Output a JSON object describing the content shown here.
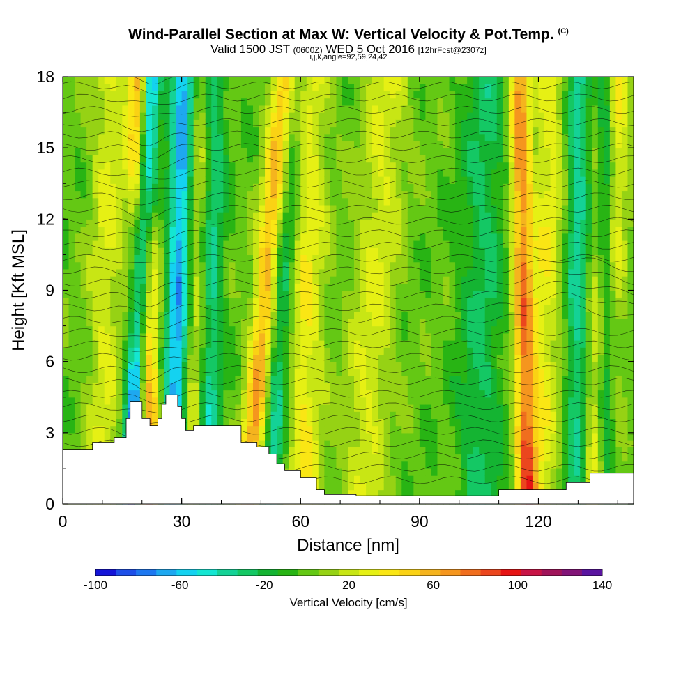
{
  "title": {
    "main": "Wind-Parallel Section at Max W: Vertical Velocity & Pot.Temp.",
    "copyright": "(C)",
    "valid": "Valid 1500 JST",
    "valid_utc": "(0600Z)",
    "date": "WED 5 Oct 2016",
    "forecast": "[12hrFcst@2307z]",
    "params": "i,j,k,angle=92,59,24,42"
  },
  "chart_data": {
    "type": "heatmap",
    "xlabel": "Distance [nm]",
    "ylabel": "Height [Kft MSL]",
    "xlim": [
      0,
      144
    ],
    "ylim": [
      0,
      18
    ],
    "x_ticks": [
      "0",
      "30",
      "60",
      "90",
      "120"
    ],
    "y_ticks": [
      "0",
      "3",
      "6",
      "9",
      "12",
      "15",
      "18"
    ],
    "x_tick_values": [
      0,
      30,
      60,
      90,
      120
    ],
    "y_tick_values": [
      0,
      3,
      6,
      9,
      12,
      15,
      18
    ],
    "colorbar": {
      "label": "Vertical Velocity [cm/s]",
      "tick_labels": [
        "-100",
        "-60",
        "-20",
        "20",
        "60",
        "100",
        "140"
      ],
      "tick_values": [
        -100,
        -60,
        -20,
        20,
        60,
        100,
        140
      ],
      "range": [
        -100,
        140
      ],
      "colors": [
        "#1414d8",
        "#1e4fe8",
        "#1e78f0",
        "#1ea8f0",
        "#14d2f0",
        "#14e6d2",
        "#14d296",
        "#14c864",
        "#14b432",
        "#28b414",
        "#64c814",
        "#96d214",
        "#c8e614",
        "#e6f014",
        "#fae614",
        "#fad214",
        "#f5b41e",
        "#f5961e",
        "#f06e1e",
        "#eb461e",
        "#e61414",
        "#c81446",
        "#a0145a",
        "#821478",
        "#5a14a0"
      ]
    },
    "terrain_kft": [
      [
        0,
        2.3
      ],
      [
        7.5,
        2.3
      ],
      [
        7.5,
        2.6
      ],
      [
        13,
        2.6
      ],
      [
        13,
        2.8
      ],
      [
        16,
        2.8
      ],
      [
        16,
        3.6
      ],
      [
        17,
        3.6
      ],
      [
        17,
        4.3
      ],
      [
        20,
        4.3
      ],
      [
        20,
        3.6
      ],
      [
        22,
        3.6
      ],
      [
        22,
        3.3
      ],
      [
        24,
        3.3
      ],
      [
        24,
        3.6
      ],
      [
        25,
        3.6
      ],
      [
        25,
        4.2
      ],
      [
        26,
        4.2
      ],
      [
        26,
        4.6
      ],
      [
        29,
        4.6
      ],
      [
        29,
        4.1
      ],
      [
        30,
        4.1
      ],
      [
        30,
        3.6
      ],
      [
        31,
        3.6
      ],
      [
        31,
        3.1
      ],
      [
        33,
        3.1
      ],
      [
        33,
        3.3
      ],
      [
        40,
        3.3
      ],
      [
        40,
        3.3
      ],
      [
        45,
        3.3
      ],
      [
        45,
        2.6
      ],
      [
        49,
        2.6
      ],
      [
        49,
        2.4
      ],
      [
        52,
        2.4
      ],
      [
        52,
        2.1
      ],
      [
        54,
        2.1
      ],
      [
        54,
        1.7
      ],
      [
        56,
        1.7
      ],
      [
        56,
        1.4
      ],
      [
        60,
        1.4
      ],
      [
        60,
        1.1
      ],
      [
        64,
        1.1
      ],
      [
        64,
        0.6
      ],
      [
        66,
        0.6
      ],
      [
        66,
        0.4
      ],
      [
        74,
        0.4
      ],
      [
        74,
        0.35
      ],
      [
        110,
        0.35
      ],
      [
        110,
        0.6
      ],
      [
        120,
        0.6
      ],
      [
        120,
        0.6
      ],
      [
        127,
        0.6
      ],
      [
        127,
        0.9
      ],
      [
        133,
        0.9
      ],
      [
        133,
        1.3
      ],
      [
        144,
        1.3
      ]
    ],
    "theta_levels_K": "contour labels unreadable at this resolution"
  }
}
